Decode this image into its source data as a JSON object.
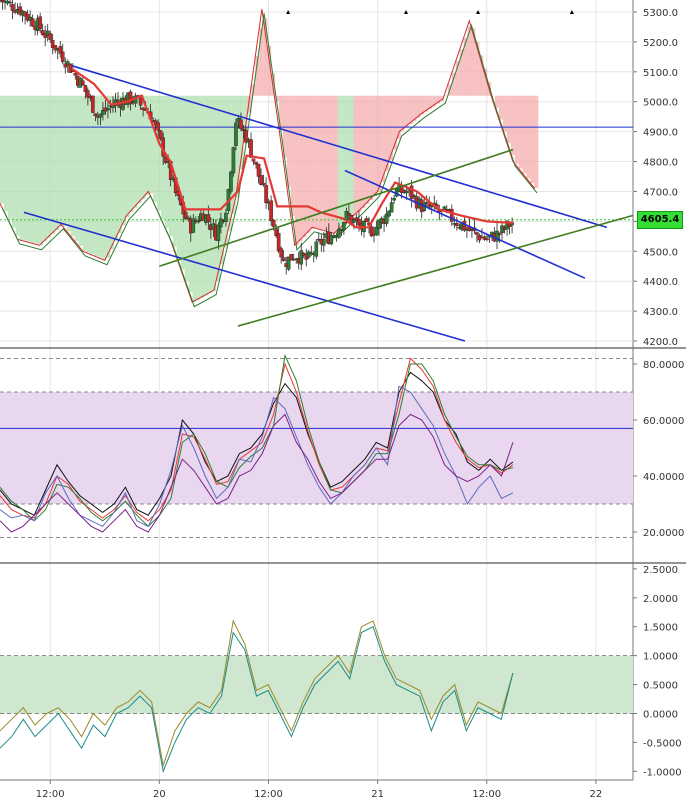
{
  "colors": {
    "background": "#ffffff",
    "grid": "#e6e6e6",
    "up_candle": "#2e7d32",
    "down_candle": "#c62828",
    "baseline_line": "#e53935",
    "channel_blue": "#1f2fd1",
    "channel_green": "#3f7d20",
    "cloud_red": "#f4a6a6",
    "cloud_green": "#a9dba9",
    "price_tag_bg": "#33dd33",
    "osc_band": "#e9d7ef",
    "bottom_band": "#cfe7cf",
    "hline_blue": "#1f2fd1"
  },
  "chart_data": [
    {
      "type": "candlestick",
      "panel": "price",
      "ylim": [
        4180,
        5340
      ],
      "yticks": [
        "5300.0",
        "5200.0",
        "5100.0",
        "5000.0",
        "4900.0",
        "4800.0",
        "4700.0",
        "4600.0",
        "4500.0",
        "4400.0",
        "4300.0",
        "4200.0"
      ],
      "ytick_values": [
        5300,
        5200,
        5100,
        5000,
        4900,
        4800,
        4700,
        4600,
        4500,
        4400,
        4300,
        4200
      ],
      "xticks": [
        "12:00",
        "20",
        "12:00",
        "21",
        "12:00",
        "22"
      ],
      "xtick_values": [
        0.5,
        1.0,
        1.5,
        2.0,
        2.5,
        3.0
      ],
      "xlim": [
        0.27,
        3.17
      ],
      "last_price": "4605.4",
      "last_price_value": 4605.4,
      "horizontal_line": 4915,
      "markers_x": [
        1.59,
        2.13,
        2.46,
        2.89
      ],
      "key_points": [
        {
          "t": 0.27,
          "p": 5340
        },
        {
          "t": 0.36,
          "p": 5310
        },
        {
          "t": 0.45,
          "p": 5250
        },
        {
          "t": 0.55,
          "p": 5160
        },
        {
          "t": 0.65,
          "p": 5050
        },
        {
          "t": 0.72,
          "p": 4950
        },
        {
          "t": 0.8,
          "p": 5000
        },
        {
          "t": 0.88,
          "p": 5010
        },
        {
          "t": 0.96,
          "p": 4960
        },
        {
          "t": 1.02,
          "p": 4830
        },
        {
          "t": 1.08,
          "p": 4680
        },
        {
          "t": 1.14,
          "p": 4580
        },
        {
          "t": 1.2,
          "p": 4630
        },
        {
          "t": 1.26,
          "p": 4560
        },
        {
          "t": 1.31,
          "p": 4660
        },
        {
          "t": 1.35,
          "p": 4940
        },
        {
          "t": 1.4,
          "p": 4880
        },
        {
          "t": 1.46,
          "p": 4740
        },
        {
          "t": 1.52,
          "p": 4600
        },
        {
          "t": 1.57,
          "p": 4460
        },
        {
          "t": 1.62,
          "p": 4490
        },
        {
          "t": 1.68,
          "p": 4470
        },
        {
          "t": 1.74,
          "p": 4530
        },
        {
          "t": 1.8,
          "p": 4560
        },
        {
          "t": 1.86,
          "p": 4620
        },
        {
          "t": 1.92,
          "p": 4580
        },
        {
          "t": 1.98,
          "p": 4570
        },
        {
          "t": 2.04,
          "p": 4620
        },
        {
          "t": 2.08,
          "p": 4700
        },
        {
          "t": 2.14,
          "p": 4700
        },
        {
          "t": 2.2,
          "p": 4650
        },
        {
          "t": 2.26,
          "p": 4640
        },
        {
          "t": 2.32,
          "p": 4620
        },
        {
          "t": 2.38,
          "p": 4590
        },
        {
          "t": 2.44,
          "p": 4560
        },
        {
          "t": 2.5,
          "p": 4540
        },
        {
          "t": 2.56,
          "p": 4560
        },
        {
          "t": 2.62,
          "p": 4600
        }
      ],
      "baseline_line": [
        {
          "t": 0.6,
          "p": 5110
        },
        {
          "t": 0.7,
          "p": 5060
        },
        {
          "t": 0.78,
          "p": 4990
        },
        {
          "t": 0.85,
          "p": 5000
        },
        {
          "t": 0.92,
          "p": 5020
        },
        {
          "t": 1.0,
          "p": 4860
        },
        {
          "t": 1.05,
          "p": 4800
        },
        {
          "t": 1.12,
          "p": 4640
        },
        {
          "t": 1.2,
          "p": 4640
        },
        {
          "t": 1.28,
          "p": 4640
        },
        {
          "t": 1.36,
          "p": 4700
        },
        {
          "t": 1.4,
          "p": 4820
        },
        {
          "t": 1.48,
          "p": 4810
        },
        {
          "t": 1.54,
          "p": 4650
        },
        {
          "t": 1.68,
          "p": 4650
        },
        {
          "t": 1.74,
          "p": 4630
        },
        {
          "t": 1.84,
          "p": 4610
        },
        {
          "t": 1.9,
          "p": 4580
        },
        {
          "t": 1.96,
          "p": 4580
        },
        {
          "t": 2.02,
          "p": 4660
        },
        {
          "t": 2.08,
          "p": 4730
        },
        {
          "t": 2.18,
          "p": 4700
        },
        {
          "t": 2.28,
          "p": 4640
        },
        {
          "t": 2.38,
          "p": 4620
        },
        {
          "t": 2.5,
          "p": 4600
        },
        {
          "t": 2.62,
          "p": 4595
        }
      ],
      "channels": [
        {
          "color": "channel_blue",
          "t1": 0.6,
          "p1": 5120,
          "t2": 3.05,
          "p2": 4580
        },
        {
          "color": "channel_blue",
          "t1": 0.38,
          "p1": 4630,
          "t2": 2.4,
          "p2": 4200
        },
        {
          "color": "channel_blue",
          "t1": 1.85,
          "p1": 4770,
          "t2": 2.95,
          "p2": 4410
        },
        {
          "color": "channel_green",
          "t1": 1.0,
          "p1": 4450,
          "t2": 2.62,
          "p2": 4840
        },
        {
          "color": "channel_green",
          "t1": 1.36,
          "p1": 4250,
          "t2": 3.22,
          "p2": 4630
        }
      ],
      "envelope_outer": [
        {
          "t": 0.27,
          "p": 4660
        },
        {
          "t": 0.35,
          "p": 4540
        },
        {
          "t": 0.45,
          "p": 4520
        },
        {
          "t": 0.55,
          "p": 4590
        },
        {
          "t": 0.65,
          "p": 4500
        },
        {
          "t": 0.75,
          "p": 4470
        },
        {
          "t": 0.85,
          "p": 4620
        },
        {
          "t": 0.95,
          "p": 4700
        },
        {
          "t": 1.05,
          "p": 4540
        },
        {
          "t": 1.15,
          "p": 4330
        },
        {
          "t": 1.25,
          "p": 4370
        },
        {
          "t": 1.35,
          "p": 4680
        },
        {
          "t": 1.47,
          "p": 5310
        },
        {
          "t": 1.55,
          "p": 4900
        },
        {
          "t": 1.62,
          "p": 4520
        },
        {
          "t": 1.7,
          "p": 4580
        },
        {
          "t": 1.8,
          "p": 4560
        },
        {
          "t": 1.92,
          "p": 4640
        },
        {
          "t": 2.0,
          "p": 4700
        },
        {
          "t": 2.1,
          "p": 4900
        },
        {
          "t": 2.2,
          "p": 4960
        },
        {
          "t": 2.3,
          "p": 5010
        },
        {
          "t": 2.42,
          "p": 5270
        },
        {
          "t": 2.52,
          "p": 5020
        },
        {
          "t": 2.62,
          "p": 4800
        },
        {
          "t": 2.72,
          "p": 4710
        }
      ]
    },
    {
      "type": "line",
      "panel": "oscillator",
      "ylim": [
        10,
        85
      ],
      "yticks": [
        "80.0000",
        "60.0000",
        "40.0000",
        "20.0000"
      ],
      "ytick_values": [
        80,
        60,
        40,
        20
      ],
      "band": [
        30,
        70
      ],
      "dashed_levels": [
        82,
        70,
        30,
        18
      ],
      "horizontal_line": 57,
      "series": [
        {
          "color": "#111111",
          "values": [
            35,
            30,
            28,
            26,
            35,
            44,
            38,
            33,
            30,
            27,
            30,
            36,
            28,
            26,
            32,
            40,
            60,
            55,
            45,
            38,
            40,
            48,
            50,
            55,
            66,
            73,
            68,
            55,
            45,
            36,
            38,
            42,
            46,
            52,
            50,
            70,
            77,
            74,
            70,
            60,
            55,
            45,
            42,
            46,
            42,
            45
          ]
        },
        {
          "color": "#e53935",
          "values": [
            33,
            28,
            26,
            25,
            30,
            40,
            37,
            31,
            28,
            25,
            28,
            33,
            27,
            24,
            28,
            35,
            55,
            54,
            46,
            37,
            38,
            46,
            49,
            52,
            62,
            80,
            70,
            56,
            44,
            35,
            36,
            40,
            44,
            50,
            49,
            66,
            82,
            78,
            72,
            60,
            52,
            46,
            43,
            44,
            41,
            44
          ]
        },
        {
          "color": "#2e7d32",
          "values": [
            36,
            31,
            28,
            24,
            28,
            37,
            36,
            32,
            27,
            24,
            27,
            31,
            26,
            22,
            26,
            32,
            52,
            55,
            48,
            38,
            36,
            43,
            47,
            50,
            58,
            83,
            74,
            58,
            45,
            35,
            34,
            38,
            42,
            48,
            48,
            62,
            80,
            80,
            74,
            62,
            54,
            47,
            44,
            44,
            42,
            43
          ]
        },
        {
          "color": "#5c6bc0",
          "values": [
            28,
            25,
            26,
            24,
            34,
            40,
            32,
            26,
            24,
            22,
            27,
            34,
            24,
            22,
            30,
            42,
            58,
            50,
            40,
            32,
            36,
            46,
            45,
            54,
            68,
            64,
            54,
            44,
            36,
            30,
            34,
            40,
            44,
            50,
            44,
            72,
            70,
            64,
            58,
            48,
            40,
            30,
            36,
            40,
            32,
            34
          ]
        },
        {
          "color": "#7b1f8a",
          "values": [
            24,
            20,
            22,
            26,
            30,
            34,
            30,
            26,
            22,
            20,
            24,
            28,
            22,
            20,
            26,
            36,
            46,
            42,
            36,
            30,
            32,
            40,
            42,
            48,
            58,
            62,
            52,
            46,
            38,
            32,
            34,
            38,
            42,
            46,
            46,
            58,
            62,
            60,
            54,
            44,
            40,
            38,
            40,
            44,
            40,
            52
          ]
        }
      ]
    },
    {
      "type": "line",
      "panel": "bottom",
      "ylim": [
        -1.15,
        2.55
      ],
      "yticks": [
        "2.5000",
        "2.0000",
        "1.5000",
        "1.0000",
        "0.5000",
        "0.0000",
        "-0.5000",
        "-1.0000"
      ],
      "ytick_values": [
        2.5,
        2.0,
        1.5,
        1.0,
        0.5,
        0.0,
        -0.5,
        -1.0
      ],
      "band": [
        0,
        1
      ],
      "series": [
        {
          "color": "#9a8a2a",
          "values": [
            -0.3,
            -0.1,
            0.1,
            -0.2,
            0.0,
            0.1,
            -0.1,
            -0.4,
            0.0,
            -0.2,
            0.1,
            0.2,
            0.4,
            0.2,
            -0.9,
            -0.3,
            0.0,
            0.2,
            0.1,
            0.4,
            1.6,
            1.2,
            0.4,
            0.5,
            0.1,
            -0.3,
            0.2,
            0.6,
            0.8,
            1.0,
            0.7,
            1.5,
            1.6,
            1.0,
            0.6,
            0.5,
            0.4,
            -0.1,
            0.3,
            0.5,
            -0.2,
            0.2,
            0.1,
            0.0,
            0.7
          ]
        },
        {
          "color": "#1b8a8a",
          "values": [
            -0.6,
            -0.4,
            -0.1,
            -0.4,
            -0.2,
            0.0,
            -0.3,
            -0.6,
            -0.2,
            -0.4,
            0.0,
            0.1,
            0.3,
            0.1,
            -1.0,
            -0.5,
            -0.1,
            0.1,
            0.0,
            0.3,
            1.4,
            1.1,
            0.3,
            0.4,
            0.0,
            -0.4,
            0.1,
            0.5,
            0.7,
            0.9,
            0.6,
            1.4,
            1.5,
            0.9,
            0.5,
            0.4,
            0.3,
            -0.3,
            0.2,
            0.4,
            -0.3,
            0.1,
            0.0,
            -0.1,
            0.7
          ]
        }
      ]
    }
  ]
}
